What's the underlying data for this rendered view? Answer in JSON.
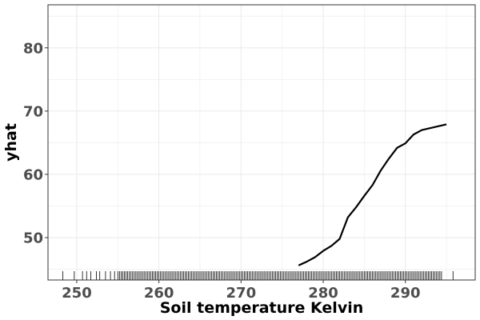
{
  "chart_data": {
    "type": "line",
    "title": "",
    "xlabel": "Soil temperature Kelvin",
    "ylabel": "yhat",
    "xlim": [
      246.5,
      298.5
    ],
    "ylim": [
      43.3,
      86.8
    ],
    "grid": true,
    "x_ticks": [
      250,
      260,
      270,
      280,
      290
    ],
    "y_ticks": [
      50,
      60,
      70,
      80
    ],
    "colors": {
      "line": "#000000",
      "grid": "#ebebeb",
      "border": "#333333",
      "rug": "#000000"
    },
    "series": [
      {
        "x": [
          277.0,
          278.0,
          279.0,
          280.0,
          281.0,
          282.0,
          283.0,
          284.0,
          285.0,
          286.0,
          287.0,
          288.0,
          289.0,
          290.0,
          291.0,
          292.0,
          293.0,
          294.0,
          295.0
        ],
        "y": [
          45.6,
          46.2,
          46.9,
          47.9,
          48.7,
          49.8,
          53.2,
          54.8,
          56.6,
          58.3,
          60.6,
          62.5,
          64.2,
          64.9,
          66.3,
          67.0,
          67.3,
          67.6,
          67.9
        ]
      }
    ],
    "rug": {
      "sparse_x": [
        248.3,
        249.7,
        250.7,
        251.2,
        251.7,
        252.4,
        252.8,
        253.5,
        254.1,
        254.6,
        295.8
      ],
      "dense_range": [
        255.0,
        294.5
      ],
      "dense_step": 0.2
    }
  }
}
